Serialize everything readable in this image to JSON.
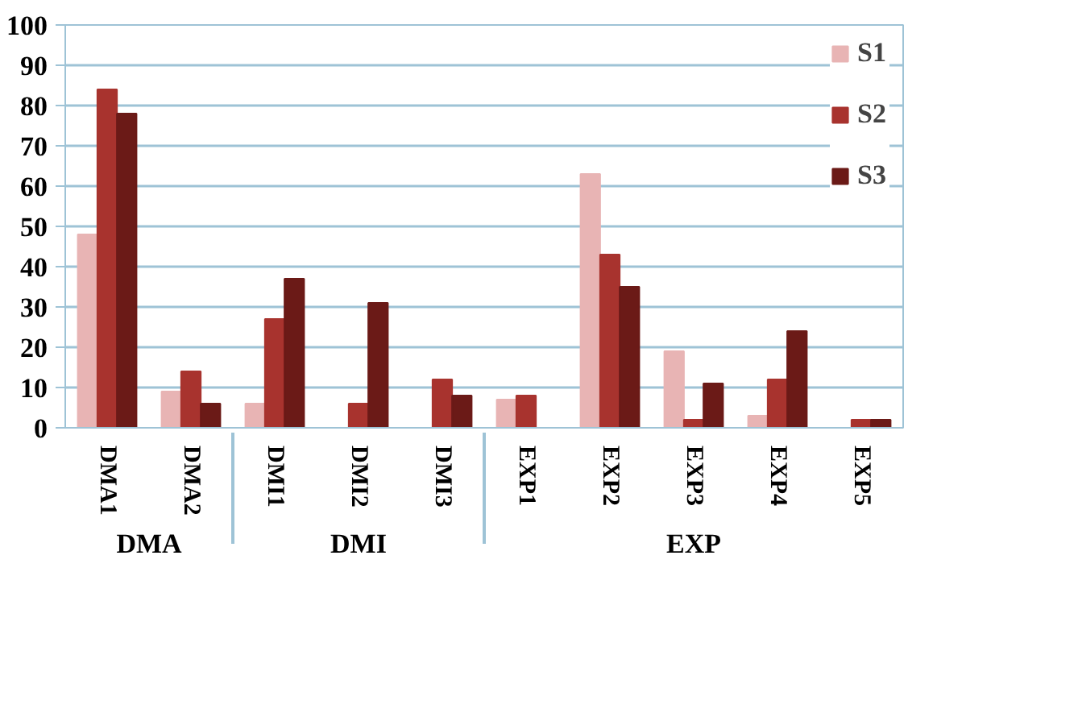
{
  "chart_data": {
    "type": "bar",
    "categories": [
      "DMA1",
      "DMA2",
      "DMI1",
      "DMI2",
      "DMI3",
      "EXP1",
      "EXP2",
      "EXP3",
      "EXP4",
      "EXP5"
    ],
    "series": [
      {
        "name": "S1",
        "color": "#e8b4b4",
        "values": [
          48,
          9,
          6,
          0,
          0,
          7,
          63,
          19,
          3,
          0
        ]
      },
      {
        "name": "S2",
        "color": "#a8332e",
        "values": [
          84,
          14,
          27,
          6,
          12,
          8,
          43,
          2,
          12,
          2
        ]
      },
      {
        "name": "S3",
        "color": "#6b1a17",
        "values": [
          78,
          6,
          37,
          31,
          8,
          0,
          35,
          11,
          24,
          2
        ]
      }
    ],
    "ylim": [
      0,
      100
    ],
    "yticks": [
      0,
      10,
      20,
      30,
      40,
      50,
      60,
      70,
      80,
      90,
      100
    ],
    "grid": "y",
    "legend": "top right",
    "annotations": [
      "DMA",
      "DMI",
      "EXP"
    ]
  }
}
